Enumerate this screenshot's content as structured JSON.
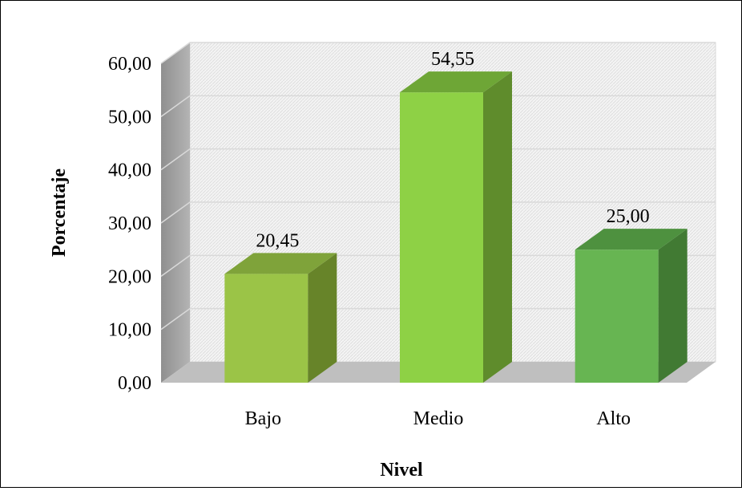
{
  "chart_data": {
    "type": "bar",
    "categories": [
      "Bajo",
      "Medio",
      "Alto"
    ],
    "values": [
      20.45,
      54.55,
      25.0
    ],
    "value_labels": [
      "20,45",
      "54,55",
      "25,00"
    ],
    "title": "",
    "xlabel": "Nivel",
    "ylabel": "Porcentaje",
    "ylim": [
      0,
      60
    ],
    "yticks": [
      0,
      10,
      20,
      30,
      40,
      50,
      60
    ],
    "ytick_labels": [
      "0,00",
      "10,00",
      "20,00",
      "30,00",
      "40,00",
      "50,00",
      "60,00"
    ],
    "grid": true,
    "legend": "none",
    "style": "3d-column",
    "colors": [
      {
        "front": "#9bc447",
        "side": "#678429",
        "top": "#7fa33a"
      },
      {
        "front": "#8ed145",
        "side": "#5f8c2c",
        "top": "#6ea636"
      },
      {
        "front": "#67b552",
        "side": "#417a33",
        "top": "#4e913f"
      }
    ]
  }
}
